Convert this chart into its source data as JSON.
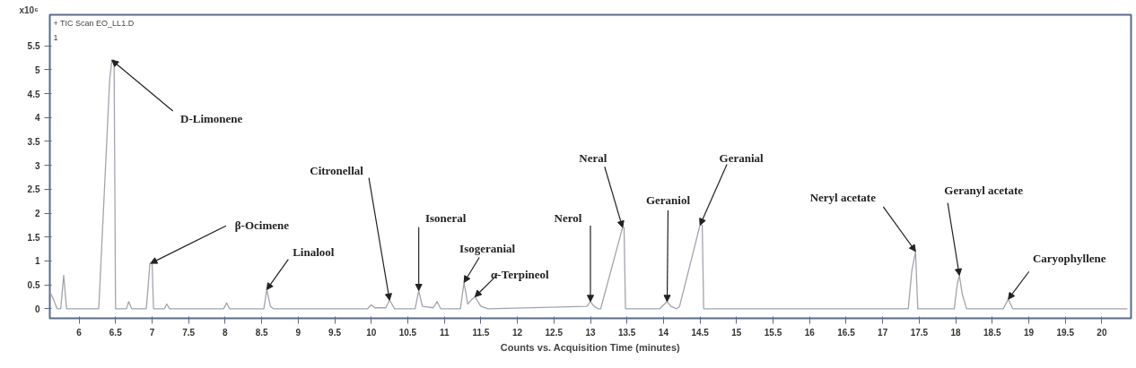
{
  "chart_data": {
    "type": "line",
    "xlabel": "Counts vs. Acquisition Time (minutes)",
    "ylabel": "x10⁶",
    "annotations": [
      "+ TIC Scan EO_LL1.D",
      "1",
      {
        "text": "D-Limonene",
        "x": 6.45,
        "y": 5.2
      },
      {
        "text": "β-Ocimene",
        "x": 6.98,
        "y": 0.95
      },
      {
        "text": "Linalool",
        "x": 8.57,
        "y": 0.4
      },
      {
        "text": "Citronellal",
        "x": 10.25,
        "y": 0.18
      },
      {
        "text": "Isoneral",
        "x": 10.65,
        "y": 0.38
      },
      {
        "text": "Isogeranial",
        "x": 11.27,
        "y": 0.55
      },
      {
        "text": "α-Terpineol",
        "x": 11.42,
        "y": 0.25
      },
      {
        "text": "Nerol",
        "x": 13.0,
        "y": 0.15
      },
      {
        "text": "Neral",
        "x": 13.44,
        "y": 1.7
      },
      {
        "text": "Geraniol",
        "x": 14.05,
        "y": 0.15
      },
      {
        "text": "Geranial",
        "x": 14.5,
        "y": 1.75
      },
      {
        "text": "Neryl acetate",
        "x": 17.45,
        "y": 1.2
      },
      {
        "text": "Geranyl acetate",
        "x": 18.05,
        "y": 0.7
      },
      {
        "text": "Caryophyllene",
        "x": 18.72,
        "y": 0.2
      }
    ],
    "x": [
      5.6,
      5.65,
      5.7,
      5.75,
      5.79,
      5.83,
      6.27,
      6.42,
      6.45,
      6.48,
      6.5,
      6.65,
      6.68,
      6.72,
      6.92,
      6.94,
      6.97,
      7.0,
      7.02,
      7.17,
      7.2,
      7.24,
      7.98,
      8.02,
      8.06,
      8.53,
      8.57,
      8.62,
      8.66,
      9.95,
      10.0,
      10.05,
      10.2,
      10.25,
      10.32,
      10.6,
      10.65,
      10.7,
      10.85,
      10.9,
      10.95,
      11.22,
      11.27,
      11.32,
      11.38,
      11.42,
      11.5,
      11.6,
      12.95,
      13.0,
      13.05,
      13.1,
      13.14,
      13.44,
      13.46,
      13.48,
      13.95,
      14.05,
      14.1,
      14.18,
      14.22,
      14.5,
      14.53,
      14.55,
      17.35,
      17.4,
      17.45,
      17.48,
      17.98,
      18.02,
      18.05,
      18.09,
      18.15,
      18.65,
      18.72,
      18.78,
      20.35
    ],
    "series": [
      {
        "color": "#a3a3ad",
        "values": [
          0.35,
          0.2,
          0,
          0,
          0.7,
          0,
          0,
          4.8,
          5.2,
          5.2,
          0,
          0,
          0.15,
          0,
          0,
          0.35,
          0.95,
          0.95,
          0,
          0,
          0.1,
          0,
          0,
          0.12,
          0,
          0,
          0.4,
          0.05,
          0,
          0,
          0.08,
          0.02,
          0.02,
          0.18,
          0,
          0,
          0.38,
          0.05,
          0.02,
          0.15,
          0,
          0,
          0.55,
          0.1,
          0.2,
          0.25,
          0.05,
          0,
          0.05,
          0.15,
          0.05,
          0,
          0,
          1.7,
          1.7,
          0,
          0,
          0.15,
          0.05,
          0,
          0.05,
          1.75,
          1.75,
          0,
          0,
          0.8,
          1.2,
          0,
          0,
          0.5,
          0.7,
          0.3,
          0,
          0,
          0.2,
          0,
          0
        ]
      }
    ],
    "xlim": [
      5.6,
      20.4
    ],
    "ylim": [
      -0.2,
      6.15
    ],
    "xticks": [
      6,
      6.5,
      7,
      7.5,
      8,
      8.5,
      9,
      9.5,
      10,
      10.5,
      11,
      11.5,
      12,
      12.5,
      13,
      13.5,
      14,
      14.5,
      15,
      15.5,
      16,
      16.5,
      17,
      17.5,
      18,
      18.5,
      19,
      19.5,
      20
    ],
    "yticks": [
      0,
      0.5,
      1,
      1.5,
      2,
      2.5,
      3,
      3.5,
      4,
      4.5,
      5,
      5.5
    ],
    "grid": false,
    "marker": "none",
    "line_style": "solid"
  }
}
